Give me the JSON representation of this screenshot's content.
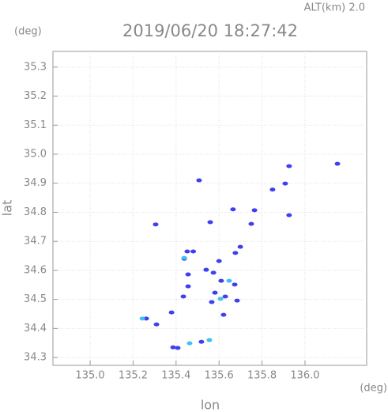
{
  "chart_data": {
    "type": "scatter",
    "title": "2019/06/20 18:27:42",
    "altitude": "ALT(km) 2.0",
    "y_unit": "(deg)",
    "x_unit": "(deg)",
    "x_label": "lon",
    "y_label": "lat",
    "xlim": [
      134.827,
      136.287
    ],
    "ylim": [
      34.273,
      35.354
    ],
    "xticks": [
      {
        "value": 135,
        "label": "135.0"
      },
      135.2,
      135.4,
      135.6,
      135.8,
      {
        "value": 136,
        "label": "136.0"
      }
    ],
    "yticks": [
      34.3,
      34.4,
      34.5,
      34.6,
      34.7,
      34.8,
      34.9,
      {
        "value": 35,
        "label": "35.0"
      },
      35.1,
      35.2,
      35.3
    ],
    "grid": true,
    "series": [
      {
        "color": "#3f3ff0",
        "x": [
          135.926,
          136.151,
          135.507,
          135.849,
          135.908,
          135.305,
          135.559,
          135.665,
          135.765,
          135.926,
          135.75,
          135.452,
          135.48,
          135.438,
          135.699,
          135.676,
          135.6,
          135.574,
          135.61,
          135.581,
          135.629,
          135.566,
          135.673,
          135.684,
          135.456,
          135.456,
          135.434,
          135.54,
          135.621,
          135.379,
          135.261,
          135.309,
          135.386,
          135.408,
          135.518
        ],
        "y": [
          34.959,
          34.967,
          34.91,
          34.878,
          34.899,
          34.758,
          34.766,
          34.81,
          34.807,
          34.79,
          34.76,
          34.665,
          34.665,
          34.64,
          34.681,
          34.66,
          34.632,
          34.592,
          34.564,
          34.523,
          34.51,
          34.491,
          34.551,
          34.496,
          34.586,
          34.545,
          34.51,
          34.602,
          34.447,
          34.455,
          34.434,
          34.414,
          34.335,
          34.333,
          34.354
        ]
      },
      {
        "color": "#3fc0f0",
        "x": [
          135.243,
          135.463,
          135.555,
          135.607,
          135.647,
          135.438
        ],
        "y": [
          34.434,
          34.349,
          34.36,
          34.502,
          34.564,
          34.643
        ]
      }
    ]
  }
}
